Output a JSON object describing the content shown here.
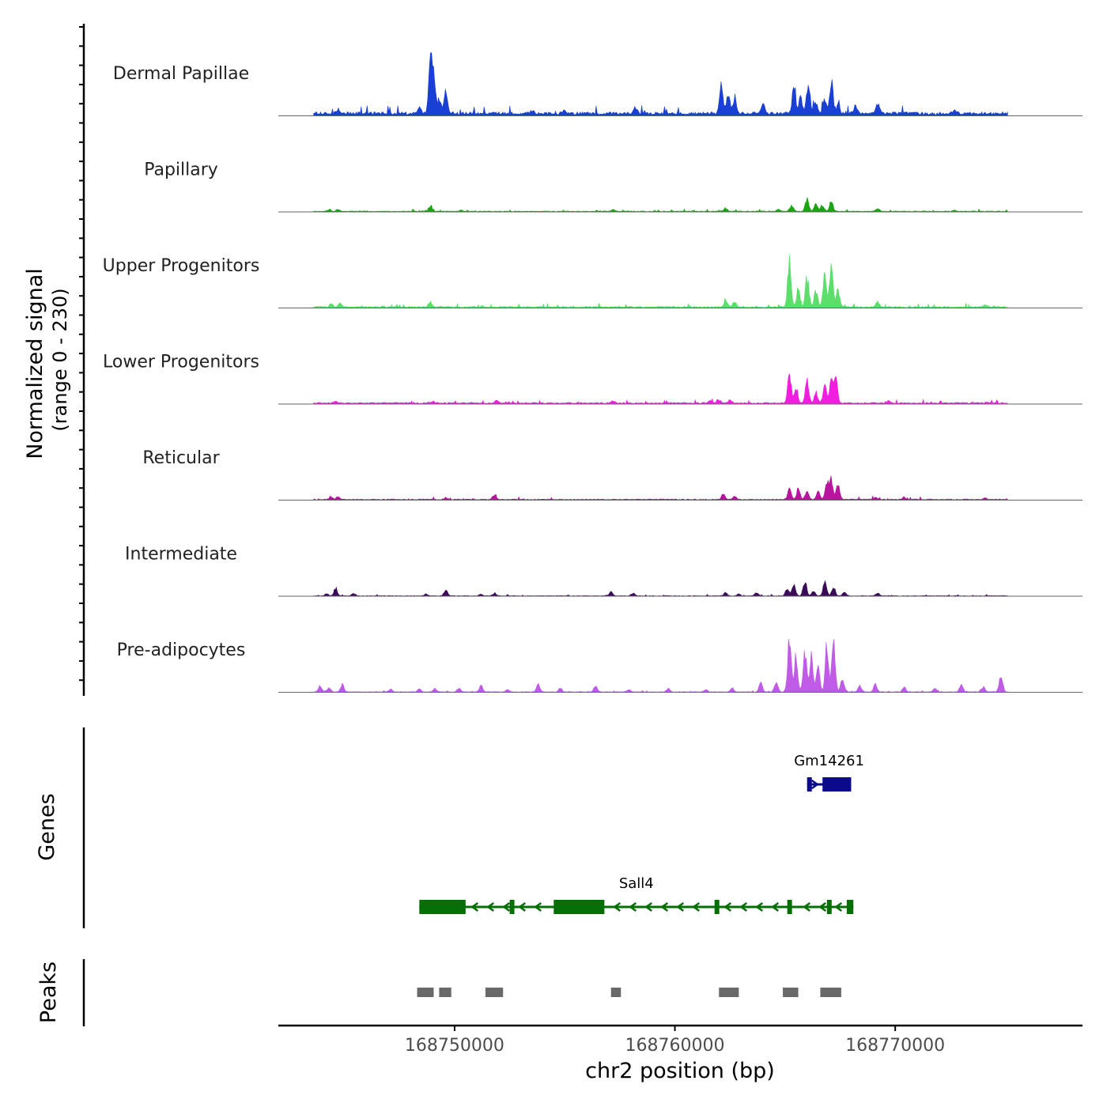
{
  "chart_data": {
    "type": "area",
    "title": "",
    "xlabel": "chr2 position (bp)",
    "ylabel_line1": "Normalized signal",
    "ylabel_line2": "(range 0 - 230)",
    "ylim": [
      0,
      230
    ],
    "xlim": [
      168742000,
      168778500
    ],
    "x_ticks": [
      168750000,
      168760000,
      168770000
    ],
    "x_tick_labels": [
      "168750000",
      "168760000",
      "168770000"
    ],
    "signal_range": [
      168743600,
      168775100
    ],
    "tracks": [
      {
        "name": "Dermal Papillae",
        "color": "#1a3fd4",
        "baseline": 12,
        "rel": 1.0,
        "peaks": [
          [
            168744700,
            12
          ],
          [
            168748400,
            25
          ],
          [
            168748900,
            230
          ],
          [
            168749050,
            170
          ],
          [
            168749300,
            55
          ],
          [
            168749600,
            80
          ],
          [
            168753500,
            12
          ],
          [
            168755000,
            10
          ],
          [
            168758200,
            22
          ],
          [
            168762100,
            110
          ],
          [
            168762400,
            70
          ],
          [
            168762700,
            60
          ],
          [
            168764000,
            40
          ],
          [
            168765400,
            95
          ],
          [
            168765700,
            80
          ],
          [
            168766050,
            130
          ],
          [
            168766400,
            50
          ],
          [
            168766800,
            60
          ],
          [
            168767100,
            130
          ],
          [
            168767400,
            40
          ],
          [
            168768200,
            30
          ],
          [
            168769200,
            40
          ],
          [
            168772700,
            14
          ]
        ]
      },
      {
        "name": "Papillary",
        "color": "#1aa514",
        "baseline": 7,
        "rel": 0.42,
        "peaks": [
          [
            168744300,
            18
          ],
          [
            168744700,
            20
          ],
          [
            168748900,
            50
          ],
          [
            168750300,
            10
          ],
          [
            168757200,
            18
          ],
          [
            168762300,
            30
          ],
          [
            168764700,
            16
          ],
          [
            168765300,
            55
          ],
          [
            168766000,
            120
          ],
          [
            168766400,
            75
          ],
          [
            168766700,
            60
          ],
          [
            168767100,
            95
          ],
          [
            168769200,
            30
          ],
          [
            168772700,
            12
          ]
        ]
      },
      {
        "name": "Upper Progenitors",
        "color": "#5cde6b",
        "baseline": 6,
        "rel": 0.85,
        "peaks": [
          [
            168744400,
            15
          ],
          [
            168744800,
            18
          ],
          [
            168748900,
            25
          ],
          [
            168762300,
            35
          ],
          [
            168762700,
            25
          ],
          [
            168765200,
            230
          ],
          [
            168765600,
            90
          ],
          [
            168766000,
            140
          ],
          [
            168766400,
            85
          ],
          [
            168766800,
            160
          ],
          [
            168767100,
            190
          ],
          [
            168767400,
            90
          ],
          [
            168769200,
            24
          ],
          [
            168774100,
            10
          ]
        ]
      },
      {
        "name": "Lower Progenitors",
        "color": "#f01fe0",
        "baseline": 9,
        "rel": 0.56,
        "peaks": [
          [
            168744600,
            14
          ],
          [
            168749000,
            14
          ],
          [
            168751900,
            18
          ],
          [
            168757200,
            18
          ],
          [
            168761600,
            18
          ],
          [
            168762000,
            24
          ],
          [
            168762500,
            22
          ],
          [
            168765200,
            200
          ],
          [
            168765500,
            110
          ],
          [
            168766000,
            165
          ],
          [
            168766400,
            80
          ],
          [
            168766800,
            120
          ],
          [
            168767100,
            190
          ],
          [
            168767300,
            200
          ],
          [
            168769700,
            14
          ],
          [
            168774200,
            10
          ]
        ]
      },
      {
        "name": "Reticular",
        "color": "#b8149e",
        "baseline": 8,
        "rel": 0.44,
        "peaks": [
          [
            168744400,
            28
          ],
          [
            168744700,
            30
          ],
          [
            168749600,
            18
          ],
          [
            168751800,
            40
          ],
          [
            168762200,
            55
          ],
          [
            168762700,
            30
          ],
          [
            168765200,
            110
          ],
          [
            168765600,
            100
          ],
          [
            168766000,
            85
          ],
          [
            168766500,
            70
          ],
          [
            168766900,
            160
          ],
          [
            168767100,
            180
          ],
          [
            168767400,
            140
          ],
          [
            168769100,
            20
          ],
          [
            168770400,
            24
          ],
          [
            168774100,
            14
          ]
        ]
      },
      {
        "name": "Intermediate",
        "color": "#3a0c58",
        "baseline": 5,
        "rel": 0.4,
        "peaks": [
          [
            168744200,
            25
          ],
          [
            168744600,
            80
          ],
          [
            168745400,
            25
          ],
          [
            168748700,
            20
          ],
          [
            168749600,
            55
          ],
          [
            168751200,
            18
          ],
          [
            168751800,
            25
          ],
          [
            168757100,
            40
          ],
          [
            168758100,
            28
          ],
          [
            168762300,
            30
          ],
          [
            168762900,
            18
          ],
          [
            168763700,
            30
          ],
          [
            168765100,
            80
          ],
          [
            168765400,
            110
          ],
          [
            168765900,
            150
          ],
          [
            168766300,
            50
          ],
          [
            168766800,
            140
          ],
          [
            168767200,
            95
          ],
          [
            168767700,
            40
          ],
          [
            168769200,
            30
          ]
        ]
      },
      {
        "name": "Pre-adipocytes",
        "color": "#c05be8",
        "baseline": 2,
        "rel": 1.0,
        "peaks": [
          [
            168743900,
            25
          ],
          [
            168744300,
            18
          ],
          [
            168744900,
            30
          ],
          [
            168747100,
            10
          ],
          [
            168748400,
            14
          ],
          [
            168749100,
            15
          ],
          [
            168750200,
            15
          ],
          [
            168751200,
            25
          ],
          [
            168752400,
            10
          ],
          [
            168753800,
            30
          ],
          [
            168754800,
            15
          ],
          [
            168756400,
            25
          ],
          [
            168757900,
            10
          ],
          [
            168759700,
            15
          ],
          [
            168761400,
            10
          ],
          [
            168762600,
            15
          ],
          [
            168763900,
            35
          ],
          [
            168764600,
            45
          ],
          [
            168765200,
            230
          ],
          [
            168765500,
            150
          ],
          [
            168765900,
            165
          ],
          [
            168766200,
            145
          ],
          [
            168766500,
            105
          ],
          [
            168766900,
            190
          ],
          [
            168767200,
            220
          ],
          [
            168767600,
            60
          ],
          [
            168768400,
            25
          ],
          [
            168769100,
            30
          ],
          [
            168770400,
            20
          ],
          [
            168771800,
            15
          ],
          [
            168773000,
            30
          ],
          [
            168774000,
            20
          ],
          [
            168774800,
            70
          ]
        ]
      }
    ],
    "genes_label": "Genes",
    "genes": [
      {
        "name": "Gm14261",
        "color": "#0a0a8a",
        "strand": "+",
        "start": 168766000,
        "end": 168768000,
        "exons": [
          [
            168766000,
            168766100
          ],
          [
            168766700,
            168768000
          ]
        ]
      },
      {
        "name": "Sall4",
        "color": "#056e05",
        "strand": "-",
        "start": 168748400,
        "end": 168768100,
        "exons": [
          [
            168748400,
            168750500
          ],
          [
            168752500,
            168752700
          ],
          [
            168754500,
            168756800
          ],
          [
            168761800,
            168761850
          ],
          [
            168765100,
            168765200
          ],
          [
            168766900,
            168767100
          ],
          [
            168767800,
            168768100
          ]
        ]
      }
    ],
    "peaks_label": "Peaks",
    "peak_regions": [
      [
        168748300,
        168749050
      ],
      [
        168749300,
        168749850
      ],
      [
        168751400,
        168752200
      ],
      [
        168757100,
        168757550
      ],
      [
        168762000,
        168762900
      ],
      [
        168764900,
        168765600
      ],
      [
        168766600,
        168767550
      ]
    ]
  }
}
